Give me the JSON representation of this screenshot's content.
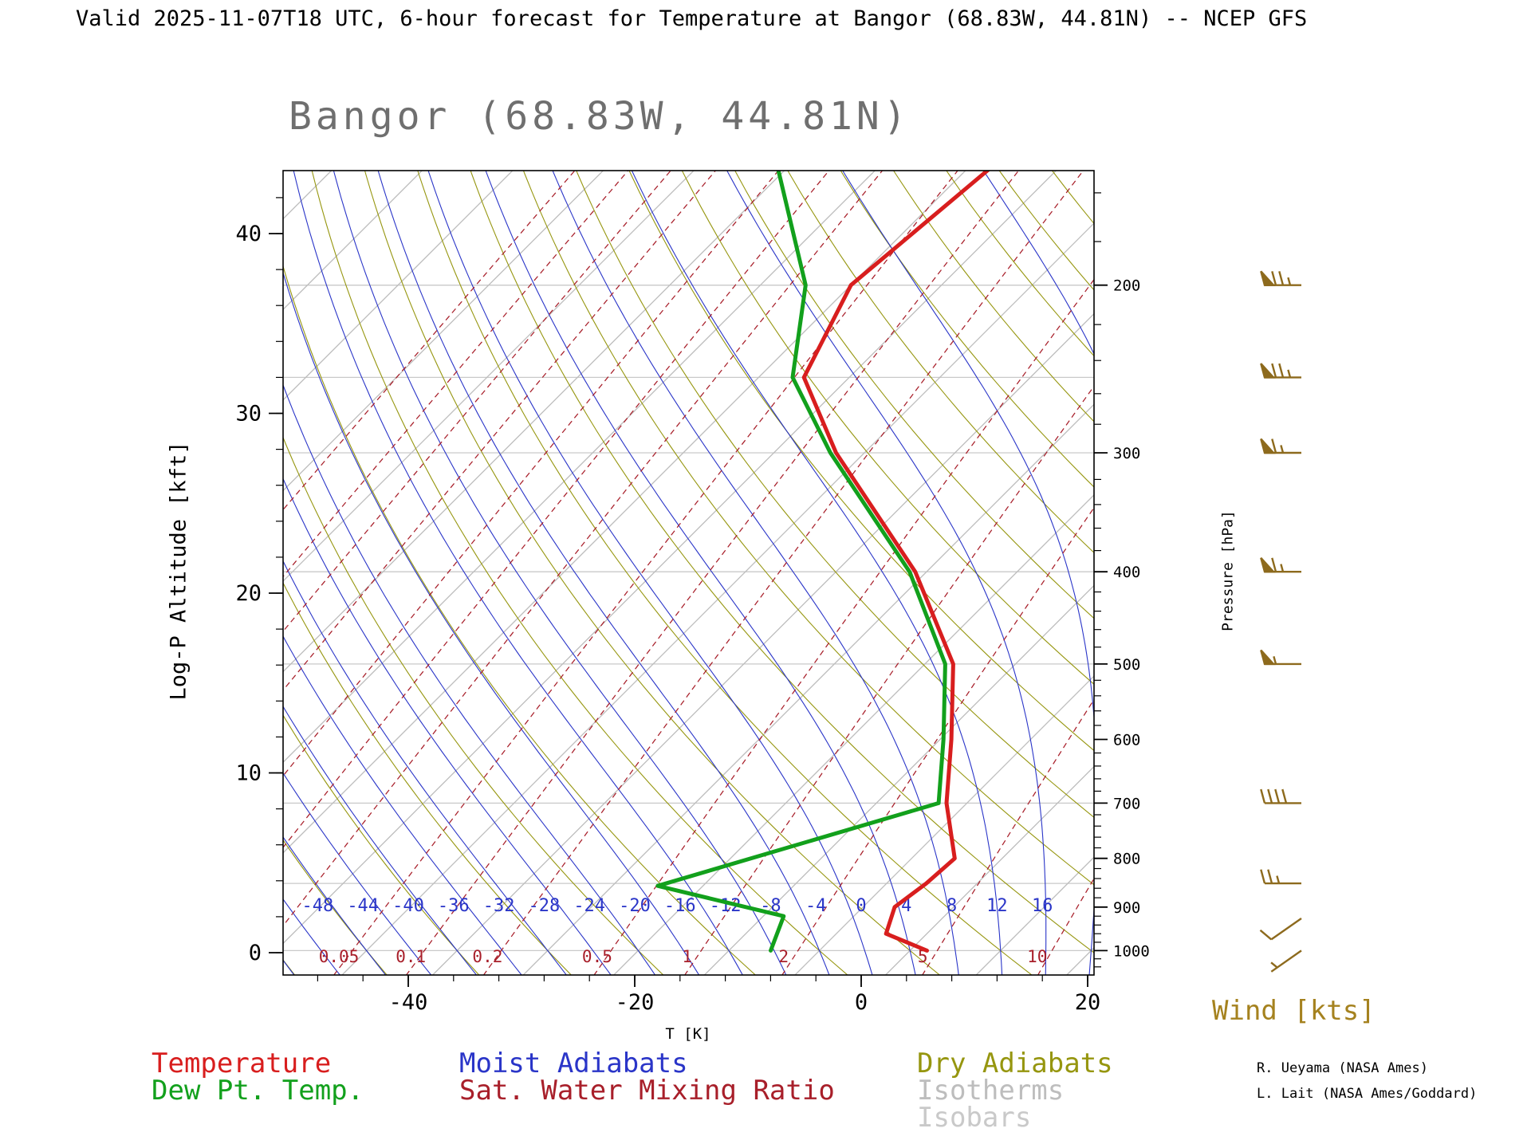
{
  "header": {
    "title": "Valid 2025-11-07T18 UTC, 6-hour forecast for Temperature at Bangor (68.83W, 44.81N) -- NCEP GFS"
  },
  "chart_title": "Bangor (68.83W, 44.81N)",
  "axes": {
    "left": {
      "label": "Log-P Altitude [kft]",
      "ticks": [
        0,
        10,
        20,
        30,
        40
      ],
      "minor_step_kft": 2
    },
    "right": {
      "label": "Pressure [hPa]",
      "ticks": [
        200,
        300,
        400,
        500,
        600,
        700,
        800,
        900,
        1000
      ],
      "minor_step_hPa": 20
    },
    "bottom": {
      "label": "T [K]",
      "ticks": [
        -40,
        -20,
        0,
        20
      ],
      "minor_step_C": 4
    }
  },
  "legend": {
    "columns": [
      [
        {
          "label": "Temperature",
          "color": "#d81e1e"
        },
        {
          "label": "Dew Pt. Temp.",
          "color": "#12a01c"
        }
      ],
      [
        {
          "label": "Moist Adiabats",
          "color": "#2a35c8"
        },
        {
          "label": "Sat. Water Mixing Ratio",
          "color": "#a81f2a"
        }
      ],
      [
        {
          "label": "Dry Adiabats",
          "color": "#96960f"
        },
        {
          "label": "Isotherms",
          "color": "#bdbdbd"
        },
        {
          "label": "Isobars",
          "color": "#c9c9c9"
        }
      ]
    ]
  },
  "wind": {
    "title": "Wind [kts]"
  },
  "credits": [
    "R. Ueyama (NASA Ames)",
    "L. Lait (NASA Ames/Goddard)"
  ],
  "colors": {
    "temperature": "#d81e1e",
    "dewpoint": "#12a01c",
    "moist_adiabat": "#2a35c8",
    "mixing_ratio": "#a81f2a",
    "dry_adiabat": "#96960f",
    "isotherm": "#bdbdbd",
    "isobar": "#c9c9c9",
    "axis": "#000000",
    "title_gray": "#6f6f6f",
    "wind_barb": "#8d6a1d",
    "wind_title": "#a5821f"
  },
  "chart_data": {
    "type": "line",
    "subtype": "skew-t-log-p-sounding",
    "title": "Bangor (68.83W, 44.81N)",
    "source": "NCEP GFS 6-hour forecast valid 2025-11-07T18 UTC",
    "xlabel": "T [K]",
    "ylabel_left": "Log-P Altitude [kft]",
    "ylabel_right": "Pressure [hPa]",
    "x_range_C": [
      -51,
      21
    ],
    "pressure_range_hPa": [
      150,
      1060
    ],
    "altitude_range_kft": [
      0,
      43
    ],
    "series": [
      {
        "name": "Temperature",
        "pressure_hPa": [
          1000,
          960,
          900,
          850,
          800,
          700,
          600,
          500,
          400,
          300,
          250,
          200,
          150
        ],
        "temp_C": [
          9.5,
          4.4,
          2.8,
          3.5,
          3.8,
          -1.8,
          -7.0,
          -13.5,
          -25.0,
          -42.5,
          -52.0,
          -56.0,
          -54.0
        ]
      },
      {
        "name": "Dew Pt. Temp.",
        "pressure_hPa": [
          1000,
          920,
          855,
          700,
          600,
          500,
          400,
          300,
          250,
          200,
          150
        ],
        "temp_C": [
          -4.3,
          -6.2,
          -20.0,
          -2.5,
          -7.7,
          -14.2,
          -25.5,
          -43.0,
          -53.0,
          -60.0,
          -73.0
        ]
      }
    ],
    "wind_barbs": [
      {
        "pressure_hPa": 200,
        "speed_kts": 75,
        "dir_from_deg": 270
      },
      {
        "pressure_hPa": 250,
        "speed_kts": 75,
        "dir_from_deg": 270
      },
      {
        "pressure_hPa": 300,
        "speed_kts": 65,
        "dir_from_deg": 270
      },
      {
        "pressure_hPa": 400,
        "speed_kts": 65,
        "dir_from_deg": 270
      },
      {
        "pressure_hPa": 500,
        "speed_kts": 55,
        "dir_from_deg": 270
      },
      {
        "pressure_hPa": 700,
        "speed_kts": 40,
        "dir_from_deg": 270
      },
      {
        "pressure_hPa": 850,
        "speed_kts": 25,
        "dir_from_deg": 270
      },
      {
        "pressure_hPa": 925,
        "speed_kts": 10,
        "dir_from_deg": 235
      },
      {
        "pressure_hPa": 1000,
        "speed_kts": 5,
        "dir_from_deg": 235
      }
    ],
    "isobars_hPa": [
      200,
      250,
      300,
      400,
      500,
      700,
      850,
      1000
    ],
    "isotherms_C": {
      "min": -120,
      "max": 32,
      "step": 8
    },
    "dry_adiabats_C": {
      "min": -72,
      "max": 160,
      "step": 8
    },
    "moist_adiabats_C": {
      "min": -48,
      "max": 40,
      "step": 4
    },
    "moist_adiabat_labels_C": [
      -48,
      -44,
      -40,
      -36,
      -32,
      -28,
      -24,
      -20,
      -16,
      -12,
      -8,
      -4,
      0,
      4,
      8,
      12,
      16
    ],
    "mixing_ratio_lines_g_kg": [
      0.0002,
      0.0005,
      0.001,
      0.002,
      0.005,
      0.01,
      0.02,
      0.05,
      0.1,
      0.2,
      0.5,
      1,
      2,
      5,
      10,
      20
    ],
    "mixing_ratio_labels_g_kg": [
      "0.05",
      "0.1",
      "0.2",
      "0.5",
      "1",
      "2",
      "5",
      "10"
    ]
  }
}
